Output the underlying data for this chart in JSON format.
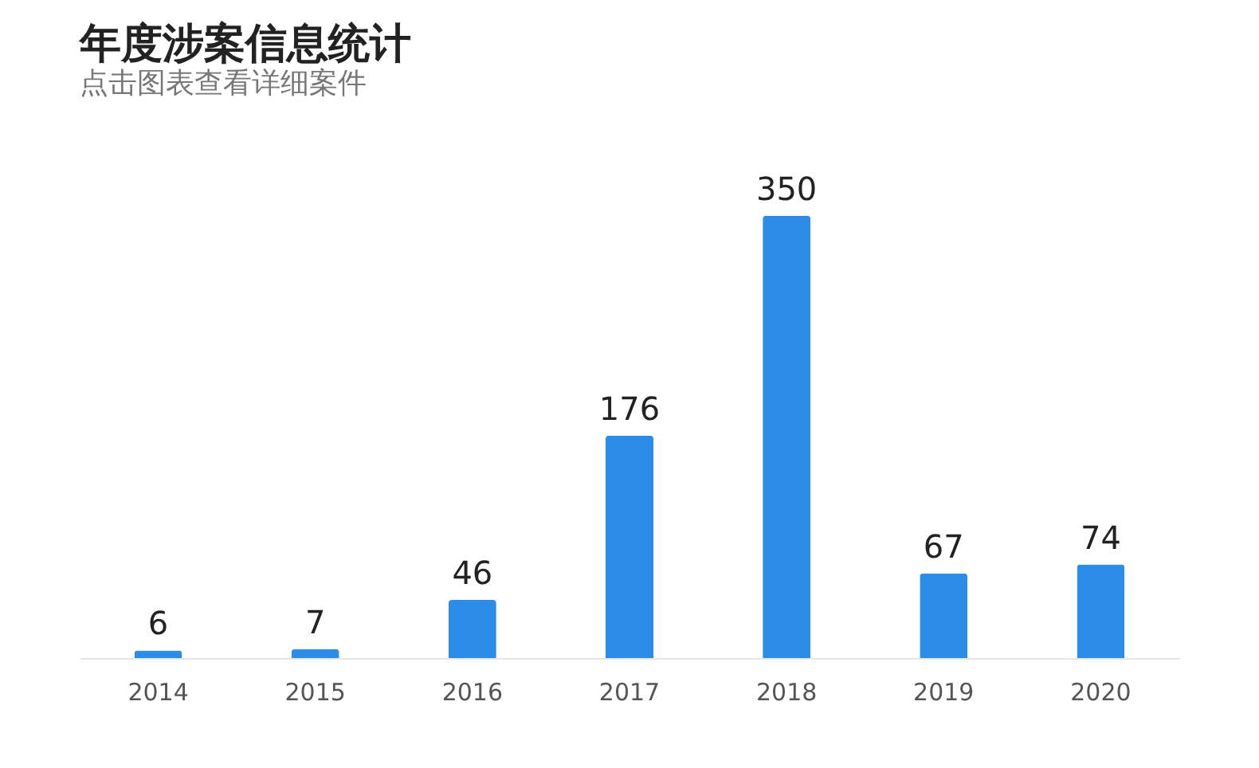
{
  "chart_data": {
    "type": "bar",
    "title": "年度涉案信息统计",
    "subtitle": "点击图表查看详细案件",
    "categories": [
      "2014",
      "2015",
      "2016",
      "2017",
      "2018",
      "2019",
      "2020"
    ],
    "values": [
      6,
      7,
      46,
      176,
      350,
      67,
      74
    ],
    "color": "#2b8de8",
    "data_labels": true,
    "tick_labels": "x"
  }
}
